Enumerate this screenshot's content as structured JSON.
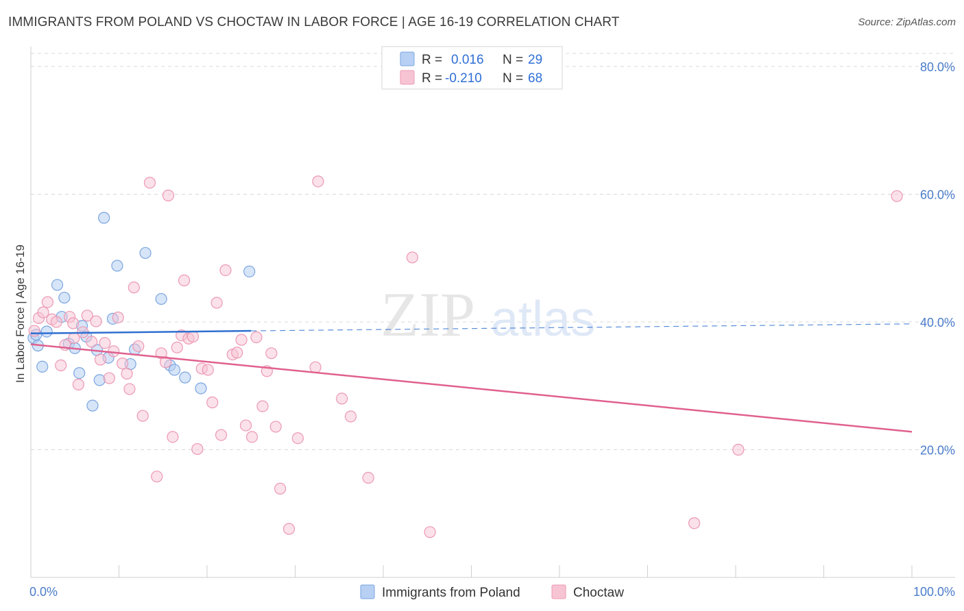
{
  "title": "IMMIGRANTS FROM POLAND VS CHOCTAW IN LABOR FORCE | AGE 16-19 CORRELATION CHART",
  "source": "Source: ZipAtlas.com",
  "watermark": {
    "zip": "ZIP",
    "atlas": "atlas"
  },
  "colors": {
    "poland_fill": "#b7d0f3",
    "poland_stroke": "#7aa4e0",
    "poland_line": "#2e6fd0",
    "choctaw_fill": "#f7c4d4",
    "choctaw_stroke": "#ec98b4",
    "choctaw_line": "#e0608e",
    "tick_text": "#4a7cc9",
    "grid": "#d8d8d8"
  },
  "legend": {
    "rows": [
      {
        "r_label": "R =",
        "r_value": "0.016",
        "n_label": "N =",
        "n_value": "29"
      },
      {
        "r_label": "R =",
        "r_value": "-0.210",
        "n_label": "N =",
        "n_value": "68"
      }
    ]
  },
  "chart_data": {
    "type": "scatter",
    "title": "IMMIGRANTS FROM POLAND VS CHOCTAW IN LABOR FORCE | AGE 16-19 CORRELATION CHART",
    "xlabel": "",
    "ylabel": "In Labor Force | Age 16-19",
    "xlim": [
      0,
      100
    ],
    "ylim": [
      0,
      80
    ],
    "x_tick_labels": [
      "0.0%",
      "100.0%"
    ],
    "y_ticks": [
      20,
      40,
      60,
      80
    ],
    "y_tick_labels": [
      "20.0%",
      "40.0%",
      "60.0%",
      "80.0%"
    ],
    "grid": true,
    "legend_position": "top-center",
    "series": [
      {
        "name": "Immigrants from Poland",
        "R": 0.016,
        "N": 29,
        "trend": {
          "x0": 0,
          "y0": 38.2,
          "x1": 25,
          "y1": 38.6,
          "dashed_to_x": 100,
          "dashed_to_y": 39.7
        },
        "points": [
          [
            0.3,
            37.5
          ],
          [
            0.8,
            36.3
          ],
          [
            1.3,
            33.0
          ],
          [
            1.8,
            38.5
          ],
          [
            3.0,
            45.8
          ],
          [
            3.5,
            40.8
          ],
          [
            3.8,
            43.8
          ],
          [
            4.3,
            36.6
          ],
          [
            5.0,
            35.9
          ],
          [
            5.5,
            32.0
          ],
          [
            5.8,
            39.4
          ],
          [
            6.3,
            37.7
          ],
          [
            7.0,
            26.9
          ],
          [
            7.5,
            35.6
          ],
          [
            7.8,
            30.9
          ],
          [
            8.3,
            56.3
          ],
          [
            8.8,
            34.4
          ],
          [
            9.3,
            40.5
          ],
          [
            9.8,
            48.8
          ],
          [
            11.3,
            33.4
          ],
          [
            11.8,
            35.7
          ],
          [
            13.0,
            50.8
          ],
          [
            14.8,
            43.6
          ],
          [
            15.8,
            33.2
          ],
          [
            16.3,
            32.5
          ],
          [
            17.5,
            31.3
          ],
          [
            19.3,
            29.6
          ],
          [
            24.8,
            47.9
          ],
          [
            0.6,
            38.0
          ]
        ]
      },
      {
        "name": "Choctaw",
        "R": -0.21,
        "N": 68,
        "trend": {
          "x0": 0,
          "y0": 36.5,
          "x1": 100,
          "y1": 22.8
        },
        "points": [
          [
            0.4,
            38.6
          ],
          [
            0.9,
            40.6
          ],
          [
            1.4,
            41.5
          ],
          [
            1.9,
            43.1
          ],
          [
            2.4,
            40.4
          ],
          [
            2.9,
            40.0
          ],
          [
            3.4,
            33.2
          ],
          [
            3.9,
            36.4
          ],
          [
            4.4,
            40.8
          ],
          [
            4.9,
            37.5
          ],
          [
            5.4,
            30.2
          ],
          [
            5.9,
            38.4
          ],
          [
            6.4,
            41.0
          ],
          [
            6.9,
            36.9
          ],
          [
            7.4,
            40.1
          ],
          [
            7.9,
            34.1
          ],
          [
            8.4,
            36.7
          ],
          [
            8.9,
            31.2
          ],
          [
            9.4,
            35.4
          ],
          [
            9.9,
            40.7
          ],
          [
            10.4,
            33.5
          ],
          [
            10.9,
            31.9
          ],
          [
            11.2,
            29.5
          ],
          [
            11.7,
            45.4
          ],
          [
            12.2,
            36.2
          ],
          [
            12.7,
            25.3
          ],
          [
            13.5,
            61.8
          ],
          [
            14.3,
            15.8
          ],
          [
            14.8,
            35.1
          ],
          [
            15.3,
            33.7
          ],
          [
            15.6,
            59.8
          ],
          [
            16.1,
            22.0
          ],
          [
            16.6,
            36.0
          ],
          [
            17.1,
            37.9
          ],
          [
            17.4,
            46.5
          ],
          [
            17.9,
            37.4
          ],
          [
            18.4,
            37.7
          ],
          [
            18.9,
            20.1
          ],
          [
            19.4,
            32.7
          ],
          [
            20.1,
            32.5
          ],
          [
            20.6,
            27.4
          ],
          [
            21.1,
            43.0
          ],
          [
            21.6,
            22.3
          ],
          [
            22.1,
            48.1
          ],
          [
            22.9,
            34.9
          ],
          [
            23.4,
            35.2
          ],
          [
            23.9,
            37.2
          ],
          [
            24.4,
            23.8
          ],
          [
            25.1,
            22.0
          ],
          [
            25.6,
            37.6
          ],
          [
            26.3,
            26.8
          ],
          [
            26.8,
            32.3
          ],
          [
            27.3,
            35.1
          ],
          [
            27.8,
            23.6
          ],
          [
            28.3,
            13.9
          ],
          [
            29.3,
            7.6
          ],
          [
            30.3,
            21.8
          ],
          [
            32.3,
            32.9
          ],
          [
            32.6,
            62.0
          ],
          [
            35.3,
            28.0
          ],
          [
            36.3,
            25.2
          ],
          [
            38.3,
            15.6
          ],
          [
            43.3,
            50.1
          ],
          [
            45.3,
            7.1
          ],
          [
            75.3,
            8.5
          ],
          [
            80.3,
            20.0
          ],
          [
            98.3,
            59.7
          ],
          [
            4.8,
            39.8
          ]
        ]
      }
    ]
  }
}
